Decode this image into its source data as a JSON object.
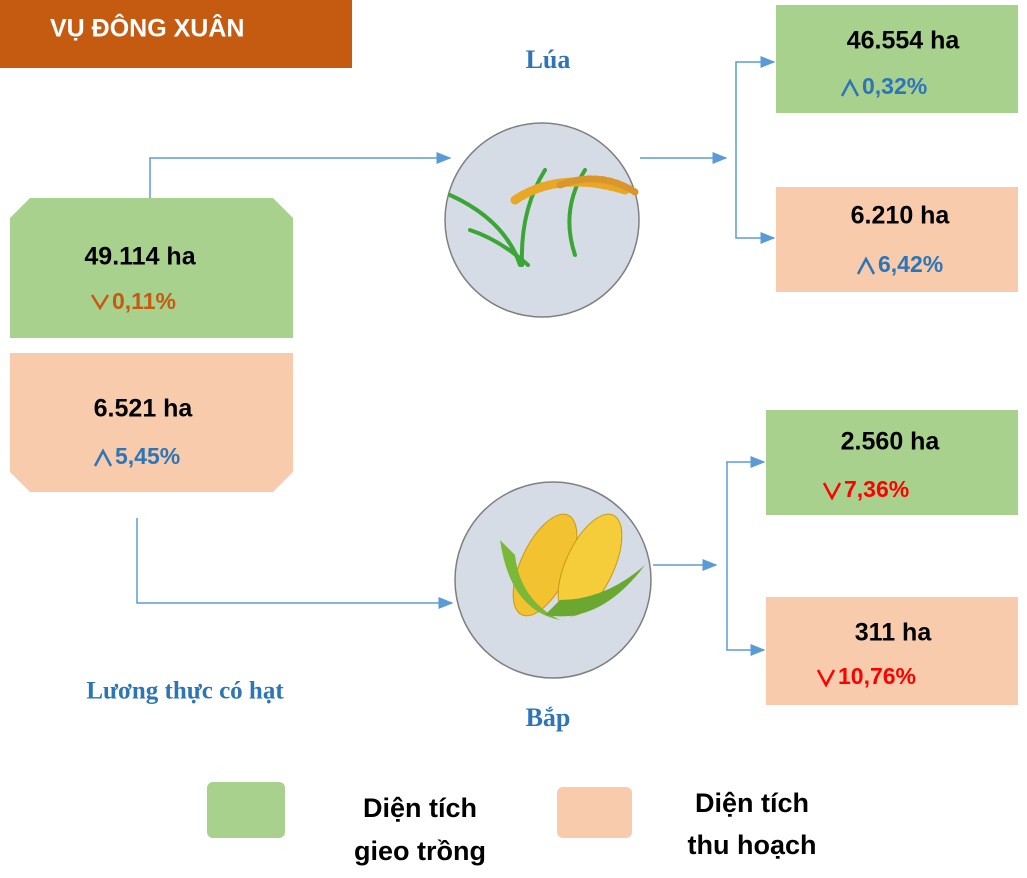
{
  "title": "VỤ ĐÔNG XUÂN",
  "total": {
    "label": "Lương thực có hạt",
    "planted": {
      "area": "49.114 ha",
      "change": "0,11%"
    },
    "harvested": {
      "area": "6.521 ha",
      "change": "5,45%"
    }
  },
  "crops": [
    {
      "name": "Lúa",
      "planted": {
        "area": "46.554 ha",
        "change": "0,32%"
      },
      "harvested": {
        "area": "6.210 ha",
        "change": "6,42%"
      }
    },
    {
      "name": "Bắp",
      "planted": {
        "area": "2.560 ha",
        "change": "7,36%"
      },
      "harvested": {
        "area": "311 ha",
        "change": "10,76%"
      }
    }
  ],
  "legend": [
    {
      "lines": [
        "Diện tích",
        "gieo trồng"
      ]
    },
    {
      "lines": [
        "Diện tích",
        "thu hoạch"
      ]
    }
  ]
}
